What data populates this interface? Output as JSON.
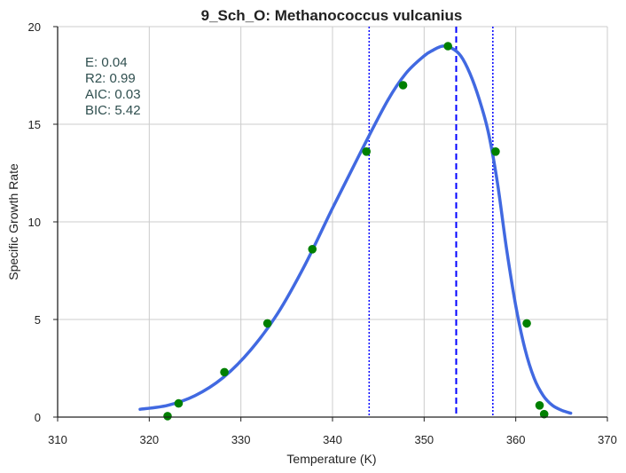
{
  "chart_data": {
    "type": "scatter",
    "title": "9_Sch_O: Methanococcus vulcanius",
    "xlabel": "Temperature (K)",
    "ylabel": "Specific Growth Rate",
    "xlim": [
      310,
      370
    ],
    "ylim": [
      0,
      20
    ],
    "xticks": [
      310,
      320,
      330,
      340,
      350,
      360,
      370
    ],
    "yticks": [
      0,
      5,
      10,
      15,
      20
    ],
    "grid": true,
    "stats": {
      "lines": [
        "E:  0.04",
        "R2:  0.99",
        "AIC: 0.03",
        "BIC: 5.42"
      ]
    },
    "observed": {
      "color": "#008000",
      "x": [
        322.0,
        323.2,
        328.2,
        332.9,
        337.8,
        343.7,
        347.7,
        352.6,
        357.8,
        361.2,
        362.6,
        363.1
      ],
      "y": [
        0.05,
        0.7,
        2.3,
        4.8,
        8.6,
        13.6,
        17.0,
        19.0,
        13.6,
        4.8,
        0.6,
        0.15
      ]
    },
    "fit": {
      "color": "#4169e1",
      "x": [
        319,
        322,
        325,
        328,
        331,
        334,
        337,
        340,
        343,
        346,
        348,
        350,
        351,
        352,
        353,
        354,
        355,
        356,
        357,
        358,
        359,
        360,
        361,
        362,
        363,
        364,
        365,
        366
      ],
      "y": [
        0.4,
        0.6,
        1.1,
        2.0,
        3.4,
        5.3,
        7.8,
        10.7,
        13.5,
        16.2,
        17.6,
        18.5,
        18.8,
        19.0,
        18.9,
        18.5,
        17.6,
        16.3,
        14.6,
        12.0,
        8.6,
        5.7,
        3.5,
        2.0,
        1.1,
        0.6,
        0.35,
        0.2
      ]
    },
    "reference_lines": [
      {
        "x": 353.5,
        "style": "dashed",
        "color": "#0000ff"
      },
      {
        "x": 344.0,
        "style": "dotted",
        "color": "#0000ff"
      },
      {
        "x": 357.5,
        "style": "dotted",
        "color": "#0000ff"
      }
    ]
  }
}
